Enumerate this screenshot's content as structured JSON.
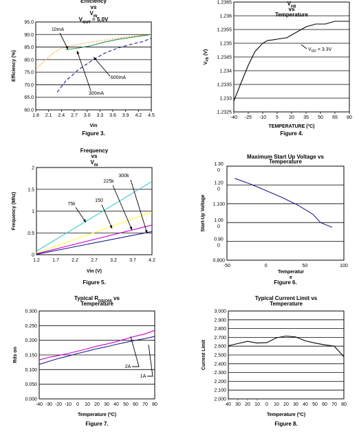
{
  "chart_data": [
    {
      "id": "fig3",
      "type": "line",
      "title_lines": [
        "Efficiency",
        "vs",
        "V_IN",
        "V_OUT = 5.0V"
      ],
      "figure_label": "Figure 3.",
      "xlabel": "Vin",
      "ylabel": "Efficiency (%)",
      "xlim": [
        1.8,
        4.5
      ],
      "ylim": [
        60.0,
        95.0
      ],
      "xticks": [
        "1.8",
        "2.1",
        "2.4",
        "2.7",
        "3.0",
        "3.3",
        "3.6",
        "3.9",
        "4.2",
        "4.5"
      ],
      "yticks": [
        "60.0",
        "65.0",
        "70.0",
        "75.0",
        "80.0",
        "85.0",
        "90.0",
        "95.0"
      ],
      "annotations": [
        "10mA",
        "600mA",
        "300mA"
      ],
      "series": [
        {
          "name": "10mA",
          "color": "#f5a623",
          "dash": "2,2",
          "x": [
            1.8,
            2.0,
            2.2,
            2.4,
            2.7,
            3.0,
            3.3,
            3.6,
            3.9,
            4.2,
            4.5
          ],
          "y": [
            76.0,
            79.5,
            82.5,
            84.5,
            85.8,
            86.7,
            87.5,
            88.3,
            89.0,
            89.6,
            90.0
          ]
        },
        {
          "name": "300mA",
          "color": "#2e8b57",
          "dash": "",
          "x": [
            2.5,
            2.8,
            3.1,
            3.4,
            3.7,
            4.0,
            4.3,
            4.5
          ],
          "y": [
            84.0,
            84.6,
            85.6,
            87.0,
            88.0,
            88.8,
            89.5,
            90.0
          ]
        },
        {
          "name": "600mA",
          "color": "#1a1a8c",
          "dash": "5,3",
          "x": [
            2.3,
            2.5,
            2.8,
            3.1,
            3.4,
            3.7,
            4.0,
            4.3,
            4.5
          ],
          "y": [
            67.0,
            71.5,
            76.0,
            79.5,
            82.5,
            84.5,
            86.0,
            87.2,
            88.5
          ]
        }
      ]
    },
    {
      "id": "fig4",
      "type": "line",
      "title_lines": [
        "V_FB",
        "vs",
        "Temperature"
      ],
      "figure_label": "Figure 4.",
      "xlabel": "TEMPERATURE (ºC)",
      "ylabel": "V_FB (V)",
      "xlim": [
        -40,
        80
      ],
      "ylim": [
        1.2325,
        1.2365
      ],
      "xticks": [
        "-40",
        "-25",
        "-10",
        "5",
        "20",
        "35",
        "50",
        "65",
        "80"
      ],
      "yticks": [
        "1.2325",
        "1.233",
        "1.2335",
        "1.234",
        "1.2345",
        "1.235",
        "1.2355",
        "1.236",
        "1.2365"
      ],
      "annotations": [
        "V_DD = 3.3V"
      ],
      "series": [
        {
          "name": "V_DD = 3.3V",
          "color": "#000000",
          "dash": "",
          "x": [
            -40,
            -32,
            -25,
            -18,
            -10,
            -5,
            0,
            5,
            15,
            25,
            35,
            45,
            55,
            65,
            80
          ],
          "y": [
            1.2329,
            1.2336,
            1.2342,
            1.2347,
            1.235,
            1.2351,
            1.23512,
            1.23515,
            1.2352,
            1.2354,
            1.2356,
            1.2357,
            1.2357,
            1.2358,
            1.2358
          ]
        }
      ]
    },
    {
      "id": "fig5",
      "type": "line",
      "title_lines": [
        "Frequency",
        "vs",
        "V_IN"
      ],
      "figure_label": "Figure 5.",
      "xlabel": "Vin (V)",
      "ylabel": "Frequency (Mhz)",
      "xlim": [
        1.2,
        4.2
      ],
      "ylim": [
        0,
        2
      ],
      "xticks": [
        "1.2",
        "1.7",
        "2.2",
        "2.7",
        "3.2",
        "3.7",
        "4.2"
      ],
      "yticks": [
        "0",
        "0.5",
        "1",
        "1.5",
        "2"
      ],
      "annotations": [
        "75k",
        "150",
        "225k",
        "300k"
      ],
      "series": [
        {
          "name": "75k",
          "color": "#33cccc",
          "dash": "",
          "x": [
            1.2,
            4.2
          ],
          "y": [
            0.08,
            1.68
          ]
        },
        {
          "name": "150",
          "color": "#ffff33",
          "dash": "",
          "x": [
            1.2,
            4.2
          ],
          "y": [
            0.04,
            0.98
          ]
        },
        {
          "name": "225k",
          "color": "#cc00cc",
          "dash": "",
          "x": [
            1.2,
            4.2
          ],
          "y": [
            0.02,
            0.68
          ]
        },
        {
          "name": "300k",
          "color": "#1a1a8c",
          "dash": "",
          "x": [
            1.2,
            4.2
          ],
          "y": [
            0.01,
            0.53
          ]
        }
      ]
    },
    {
      "id": "fig6",
      "type": "line",
      "title_lines": [
        "Maximum Start Up Voltage vs",
        "Temperature"
      ],
      "figure_label": "Figure 6.",
      "xlabel": "Temperatur e",
      "ylabel": "Start-Up Voltage",
      "xlim": [
        -50,
        100
      ],
      "yticks": [
        "1.30 0",
        "1.20 0",
        "1.100",
        "1.00 0",
        "0.90 0",
        "0.800"
      ],
      "yvals": [
        1.3,
        1.2,
        1.1,
        1.0,
        0.9,
        0.8
      ],
      "ylim": [
        0.8,
        1.3
      ],
      "xticks": [
        "-50",
        "0",
        "50",
        "100"
      ],
      "series": [
        {
          "name": "",
          "color": "#1a1a8c",
          "dash": "",
          "x": [
            -40,
            -20,
            0,
            20,
            40,
            60,
            70,
            85
          ],
          "y": [
            1.235,
            1.205,
            1.17,
            1.135,
            1.095,
            1.045,
            1.0,
            0.975
          ]
        }
      ]
    },
    {
      "id": "fig7",
      "type": "line",
      "title_lines": [
        "Typical R_DS(ON) vs",
        "Temperature"
      ],
      "figure_label": "Figure 7.",
      "xlabel": "Temperature (ºC)",
      "ylabel": "Rds on",
      "xlim": [
        -40,
        80
      ],
      "ylim": [
        0,
        0.3
      ],
      "xticks": [
        "-40",
        "-30",
        "-20",
        "-10",
        "0",
        "10",
        "20",
        "30",
        "40",
        "50",
        "60",
        "70",
        "80"
      ],
      "yticks": [
        "0.000",
        "0.050",
        "0.100",
        "0.150",
        "0.200",
        "0.250",
        "0.300"
      ],
      "annotations": [
        "2A",
        "1A"
      ],
      "series": [
        {
          "name": "2A",
          "color": "#cc00cc",
          "dash": "",
          "x": [
            -40,
            -30,
            -20,
            -10,
            0,
            10,
            20,
            30,
            40,
            50,
            60,
            70,
            80
          ],
          "y": [
            0.133,
            0.142,
            0.148,
            0.155,
            0.163,
            0.171,
            0.18,
            0.187,
            0.195,
            0.205,
            0.214,
            0.222,
            0.234
          ]
        },
        {
          "name": "1A",
          "color": "#1a1a8c",
          "dash": "",
          "x": [
            -40,
            -30,
            -20,
            -10,
            0,
            10,
            20,
            30,
            40,
            50,
            60,
            70,
            80
          ],
          "y": [
            0.118,
            0.128,
            0.138,
            0.146,
            0.155,
            0.163,
            0.171,
            0.178,
            0.186,
            0.193,
            0.2,
            0.206,
            0.213
          ]
        }
      ]
    },
    {
      "id": "fig8",
      "type": "line",
      "title_lines": [
        "Typical Current Limit vs",
        "Temperature"
      ],
      "figure_label": "Figure 8.",
      "xlabel": "Temperature (ºC)",
      "ylabel": "Current Limit",
      "xlim": [
        -40,
        80
      ],
      "ylim": [
        2.0,
        3.0
      ],
      "xticks_top": [
        "-",
        "-",
        "-",
        "-",
        "",
        "",
        "",
        "",
        "",
        "",
        "",
        "",
        ""
      ],
      "xticks": [
        "40",
        "30",
        "20",
        "10",
        "0",
        "10",
        "20",
        "30",
        "40",
        "50",
        "60",
        "70",
        "80"
      ],
      "yticks": [
        "2.000",
        "2.100",
        "2.200",
        "2.300",
        "2.400",
        "2.500",
        "2.600",
        "2.700",
        "2.800",
        "2.900",
        "3.000"
      ],
      "series": [
        {
          "name": "",
          "color": "#000000",
          "dash": "",
          "x": [
            -40,
            -30,
            -20,
            -10,
            0,
            10,
            20,
            30,
            40,
            50,
            60,
            70,
            80
          ],
          "y": [
            2.605,
            2.63,
            2.655,
            2.635,
            2.64,
            2.695,
            2.715,
            2.705,
            2.66,
            2.635,
            2.615,
            2.6,
            2.48
          ]
        }
      ]
    }
  ]
}
